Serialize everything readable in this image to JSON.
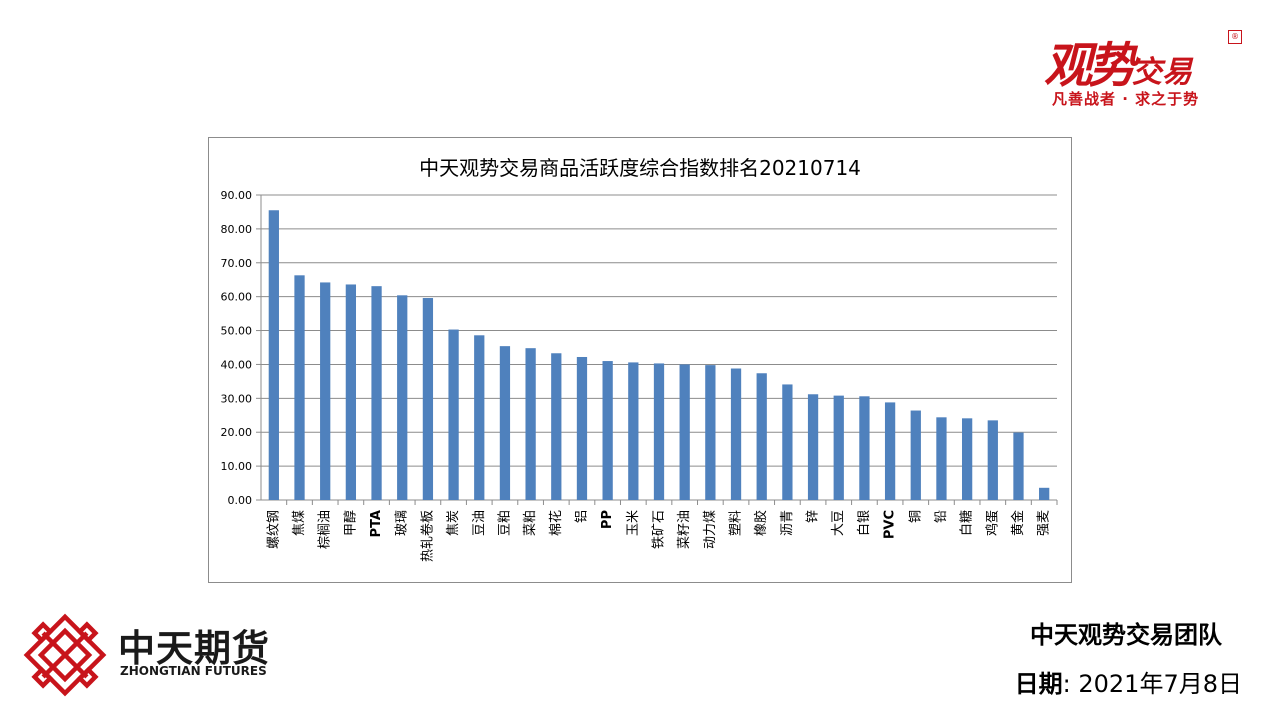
{
  "brand": {
    "name_large": "观势",
    "name_small": "交易",
    "seal": "®",
    "slogan": "凡善战者 · 求之于势"
  },
  "company": {
    "name_cn": "中天期货",
    "name_en": "ZHONGTIAN FUTURES"
  },
  "footer": {
    "team": "中天观势交易团队",
    "date_label": "日期",
    "date_sep": ":",
    "date_value": "2021年7月8日"
  },
  "colors": {
    "bar": "#4f81bd",
    "brand_red": "#c8141b",
    "grid": "#8c8c8c"
  },
  "chart_data": {
    "type": "bar",
    "title": "中天观势交易商品活跃度综合指数排名20210714",
    "xlabel": "",
    "ylabel": "",
    "ylim": [
      0,
      90
    ],
    "yticks": [
      "0.00",
      "10.00",
      "20.00",
      "30.00",
      "40.00",
      "50.00",
      "60.00",
      "70.00",
      "80.00",
      "90.00"
    ],
    "grid": true,
    "legend": "none",
    "categories": [
      "螺纹钢",
      "焦煤",
      "棕榈油",
      "甲醇",
      "PTA",
      "玻璃",
      "热轧卷板",
      "焦炭",
      "豆油",
      "豆粕",
      "菜粕",
      "棉花",
      "铝",
      "PP",
      "玉米",
      "铁矿石",
      "菜籽油",
      "动力煤",
      "塑料",
      "橡胶",
      "沥青",
      "锌",
      "大豆",
      "白银",
      "PVC",
      "铜",
      "铅",
      "白糖",
      "鸡蛋",
      "黄金",
      "强麦"
    ],
    "values": [
      85.5,
      66.3,
      64.2,
      63.6,
      63.1,
      60.4,
      59.6,
      50.3,
      48.6,
      45.4,
      44.8,
      43.3,
      42.2,
      41.0,
      40.6,
      40.3,
      40.0,
      39.8,
      38.8,
      37.4,
      34.1,
      31.2,
      30.8,
      30.6,
      28.8,
      26.4,
      24.4,
      24.1,
      23.5,
      19.9,
      3.6
    ]
  }
}
